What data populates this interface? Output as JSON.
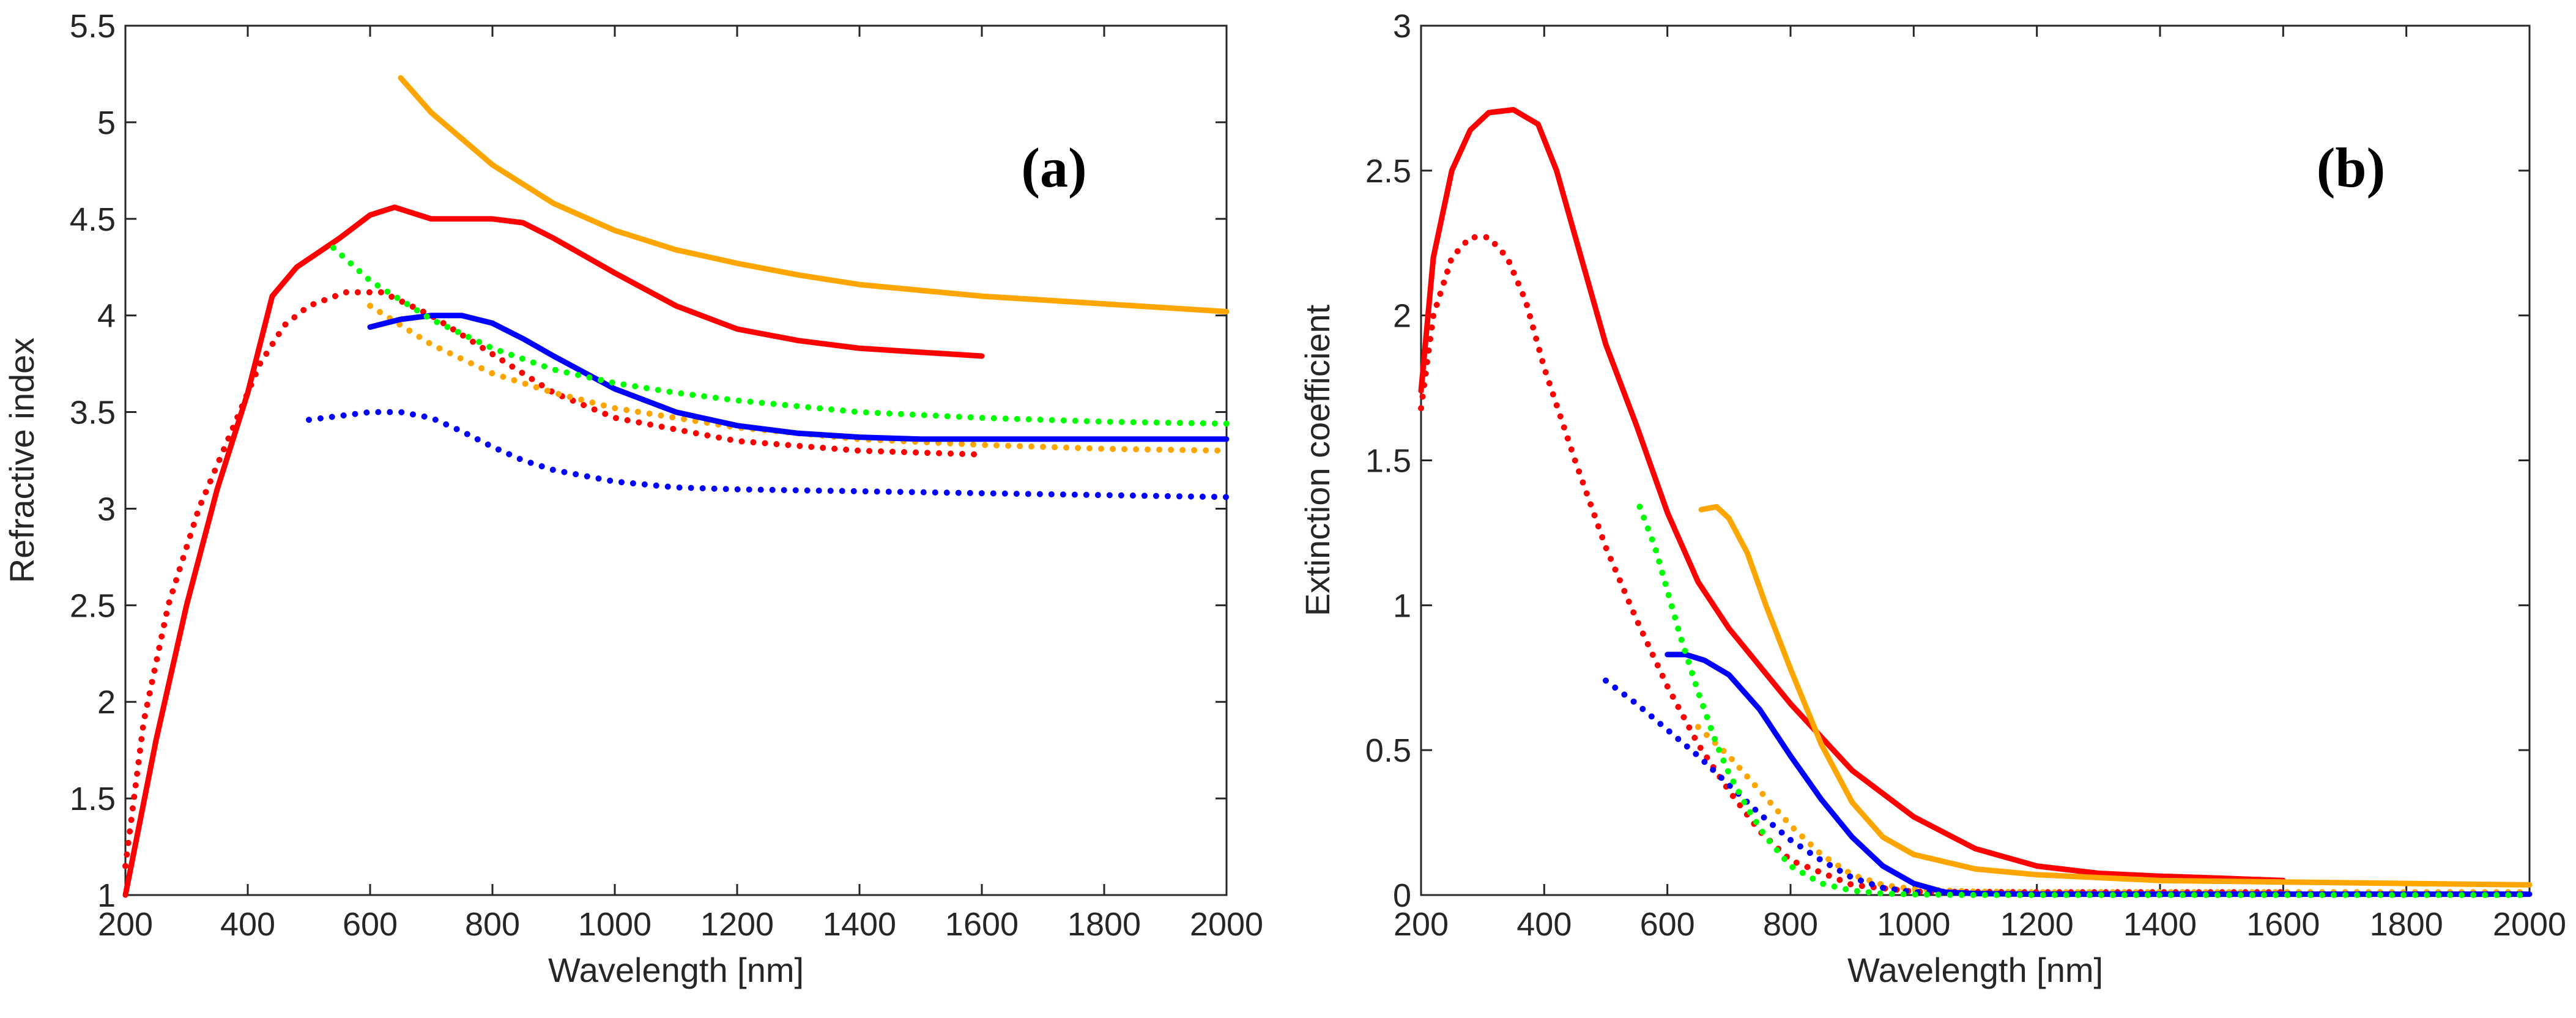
{
  "colors": {
    "red": "#ff0000",
    "orange": "#ffa500",
    "blue": "#0000ff",
    "green": "#00ff00",
    "axis": "#262626"
  },
  "chart_data": [
    {
      "type": "line",
      "panel_label": "(a)",
      "xlabel": "Wavelength [nm]",
      "ylabel": "Refractive index",
      "xlim": [
        200,
        2000
      ],
      "ylim": [
        1,
        5.5
      ],
      "xticks": [
        "200",
        "400",
        "600",
        "800",
        "1000",
        "1200",
        "1400",
        "1600",
        "1800",
        "2000"
      ],
      "yticks": [
        "1",
        "1.5",
        "2",
        "2.5",
        "3",
        "3.5",
        "4",
        "4.5",
        "5",
        "5.5"
      ],
      "grid": false,
      "legend": "none",
      "series": [
        {
          "color": "red",
          "style": "solid",
          "x": [
            200,
            250,
            300,
            350,
            400,
            440,
            480,
            550,
            600,
            640,
            700,
            750,
            800,
            850,
            900,
            1000,
            1100,
            1200,
            1300,
            1400,
            1500,
            1600
          ],
          "y": [
            1.0,
            1.8,
            2.5,
            3.1,
            3.6,
            4.1,
            4.25,
            4.4,
            4.52,
            4.56,
            4.5,
            4.5,
            4.5,
            4.48,
            4.4,
            4.22,
            4.05,
            3.93,
            3.87,
            3.83,
            3.81,
            3.79
          ]
        },
        {
          "color": "red",
          "style": "dotted",
          "x": [
            200,
            230,
            270,
            320,
            380,
            420,
            460,
            500,
            560,
            620,
            700,
            800,
            900,
            1000,
            1200,
            1400,
            1600
          ],
          "y": [
            1.15,
            1.9,
            2.5,
            3.0,
            3.45,
            3.75,
            3.95,
            4.05,
            4.12,
            4.12,
            4.0,
            3.8,
            3.6,
            3.47,
            3.35,
            3.3,
            3.28
          ]
        },
        {
          "color": "orange",
          "style": "solid",
          "x": [
            650,
            700,
            800,
            900,
            1000,
            1100,
            1200,
            1300,
            1400,
            1500,
            1600,
            1700,
            1800,
            1900,
            2000
          ],
          "y": [
            5.23,
            5.05,
            4.78,
            4.58,
            4.44,
            4.34,
            4.27,
            4.21,
            4.16,
            4.13,
            4.1,
            4.08,
            4.06,
            4.04,
            4.02
          ]
        },
        {
          "color": "orange",
          "style": "dotted",
          "x": [
            600,
            700,
            800,
            900,
            1000,
            1200,
            1400,
            1600,
            1800,
            2000
          ],
          "y": [
            4.05,
            3.85,
            3.7,
            3.6,
            3.52,
            3.42,
            3.36,
            3.33,
            3.31,
            3.3
          ]
        },
        {
          "color": "blue",
          "style": "solid",
          "x": [
            600,
            650,
            700,
            750,
            800,
            850,
            900,
            1000,
            1100,
            1200,
            1300,
            1400,
            1500,
            1600,
            1800,
            2000
          ],
          "y": [
            3.94,
            3.98,
            4.0,
            4.0,
            3.96,
            3.88,
            3.79,
            3.62,
            3.5,
            3.43,
            3.39,
            3.37,
            3.36,
            3.36,
            3.36,
            3.36
          ]
        },
        {
          "color": "blue",
          "style": "dotted",
          "x": [
            500,
            550,
            600,
            650,
            700,
            750,
            800,
            850,
            900,
            1000,
            1100,
            1200,
            1400,
            1600,
            1800,
            2000
          ],
          "y": [
            3.46,
            3.48,
            3.5,
            3.5,
            3.47,
            3.4,
            3.32,
            3.25,
            3.2,
            3.14,
            3.11,
            3.1,
            3.09,
            3.08,
            3.07,
            3.06
          ]
        },
        {
          "color": "green",
          "style": "dotted",
          "x": [
            540,
            600,
            700,
            800,
            900,
            1000,
            1100,
            1200,
            1400,
            1600,
            1800,
            2000
          ],
          "y": [
            4.35,
            4.18,
            3.98,
            3.83,
            3.72,
            3.65,
            3.6,
            3.56,
            3.5,
            3.47,
            3.45,
            3.44
          ]
        }
      ]
    },
    {
      "type": "line",
      "panel_label": "(b)",
      "xlabel": "Wavelength [nm]",
      "ylabel": "Extinction coefficient",
      "xlim": [
        200,
        2000
      ],
      "ylim": [
        0,
        3
      ],
      "xticks": [
        "200",
        "400",
        "600",
        "800",
        "1000",
        "1200",
        "1400",
        "1600",
        "1800",
        "2000"
      ],
      "yticks": [
        "0",
        "0.5",
        "1",
        "1.5",
        "2",
        "2.5",
        "3"
      ],
      "grid": false,
      "legend": "none",
      "series": [
        {
          "color": "red",
          "style": "solid",
          "x": [
            200,
            220,
            250,
            280,
            310,
            350,
            390,
            420,
            460,
            500,
            550,
            600,
            650,
            700,
            800,
            900,
            1000,
            1100,
            1200,
            1300,
            1400,
            1500,
            1600
          ],
          "y": [
            1.74,
            2.2,
            2.5,
            2.64,
            2.7,
            2.71,
            2.66,
            2.5,
            2.2,
            1.9,
            1.62,
            1.32,
            1.08,
            0.92,
            0.66,
            0.43,
            0.27,
            0.16,
            0.1,
            0.075,
            0.065,
            0.058,
            0.05
          ]
        },
        {
          "color": "red",
          "style": "dotted",
          "x": [
            200,
            220,
            250,
            280,
            310,
            340,
            370,
            400,
            450,
            500,
            550,
            600,
            650,
            700,
            750,
            800,
            900,
            1000,
            1200,
            1400,
            1600
          ],
          "y": [
            1.68,
            2.0,
            2.2,
            2.27,
            2.27,
            2.2,
            2.05,
            1.82,
            1.5,
            1.2,
            0.95,
            0.72,
            0.52,
            0.36,
            0.22,
            0.12,
            0.035,
            0.012,
            0.01,
            0.01,
            0.01
          ]
        },
        {
          "color": "orange",
          "style": "solid",
          "x": [
            655,
            680,
            700,
            730,
            760,
            800,
            850,
            900,
            950,
            1000,
            1100,
            1200,
            1400,
            1600,
            1800,
            2000
          ],
          "y": [
            1.33,
            1.34,
            1.3,
            1.18,
            1.0,
            0.78,
            0.52,
            0.32,
            0.2,
            0.14,
            0.09,
            0.07,
            0.05,
            0.045,
            0.04,
            0.035
          ]
        },
        {
          "color": "orange",
          "style": "dotted",
          "x": [
            650,
            700,
            750,
            800,
            850,
            900,
            950,
            1000,
            1100,
            1200,
            1400,
            1600,
            1800,
            2000
          ],
          "y": [
            0.58,
            0.48,
            0.36,
            0.24,
            0.14,
            0.07,
            0.035,
            0.02,
            0.012,
            0.01,
            0.01,
            0.01,
            0.01,
            0.01
          ]
        },
        {
          "color": "blue",
          "style": "solid",
          "x": [
            600,
            630,
            660,
            700,
            750,
            800,
            850,
            900,
            950,
            1000,
            1050,
            1100,
            1200,
            1400,
            1600,
            1800,
            2000
          ],
          "y": [
            0.83,
            0.83,
            0.81,
            0.76,
            0.64,
            0.48,
            0.33,
            0.2,
            0.1,
            0.04,
            0.01,
            0.005,
            0.003,
            0.003,
            0.003,
            0.003,
            0.003
          ]
        },
        {
          "color": "blue",
          "style": "dotted",
          "x": [
            500,
            550,
            600,
            650,
            700,
            750,
            800,
            850,
            900,
            950,
            1000,
            1100,
            1200,
            1400,
            1600,
            1800,
            2000
          ],
          "y": [
            0.74,
            0.66,
            0.57,
            0.48,
            0.38,
            0.28,
            0.19,
            0.12,
            0.06,
            0.025,
            0.01,
            0.005,
            0.003,
            0.003,
            0.003,
            0.003,
            0.003
          ]
        },
        {
          "color": "green",
          "style": "dotted",
          "x": [
            555,
            580,
            600,
            620,
            650,
            680,
            700,
            730,
            760,
            800,
            850,
            900,
            950,
            1000,
            1100,
            1200,
            1400,
            1600,
            1800,
            2000
          ],
          "y": [
            1.34,
            1.2,
            1.05,
            0.9,
            0.7,
            0.52,
            0.42,
            0.3,
            0.2,
            0.1,
            0.04,
            0.015,
            0.005,
            0.002,
            0.0,
            0.0,
            0.0,
            0.0,
            0.0,
            0.0
          ]
        }
      ]
    }
  ]
}
